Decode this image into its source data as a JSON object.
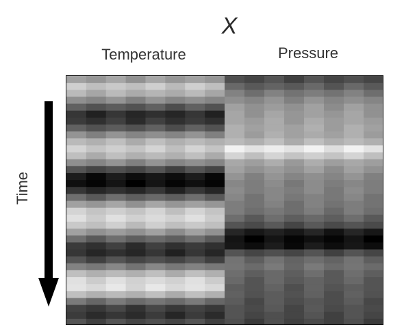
{
  "figure": {
    "title": "X",
    "column_labels": [
      "Temperature",
      "Pressure"
    ],
    "axis_label": "Time"
  },
  "colors": {
    "text": "#333333",
    "arrow": "#000000",
    "frame": "#111111"
  },
  "icons": {
    "time_arrow": "arrow-down-icon"
  },
  "panels": {
    "temperature": {
      "columns": 8,
      "bands": [
        0.62,
        0.78,
        0.7,
        0.55,
        0.35,
        0.18,
        0.22,
        0.35,
        0.55,
        0.72,
        0.8,
        0.72,
        0.55,
        0.3,
        0.08,
        0.05,
        0.18,
        0.4,
        0.62,
        0.8,
        0.85,
        0.78,
        0.6,
        0.4,
        0.22,
        0.18,
        0.3,
        0.5,
        0.72,
        0.85,
        0.88,
        0.72,
        0.45,
        0.25,
        0.2,
        0.3
      ]
    },
    "pressure": {
      "columns": 8,
      "bands": [
        0.3,
        0.38,
        0.48,
        0.55,
        0.6,
        0.62,
        0.64,
        0.66,
        0.66,
        0.72,
        0.92,
        0.8,
        0.65,
        0.6,
        0.55,
        0.52,
        0.52,
        0.5,
        0.48,
        0.46,
        0.4,
        0.32,
        0.12,
        0.05,
        0.08,
        0.3,
        0.42,
        0.45,
        0.4,
        0.38,
        0.36,
        0.35,
        0.33,
        0.32,
        0.3,
        0.28
      ]
    }
  }
}
